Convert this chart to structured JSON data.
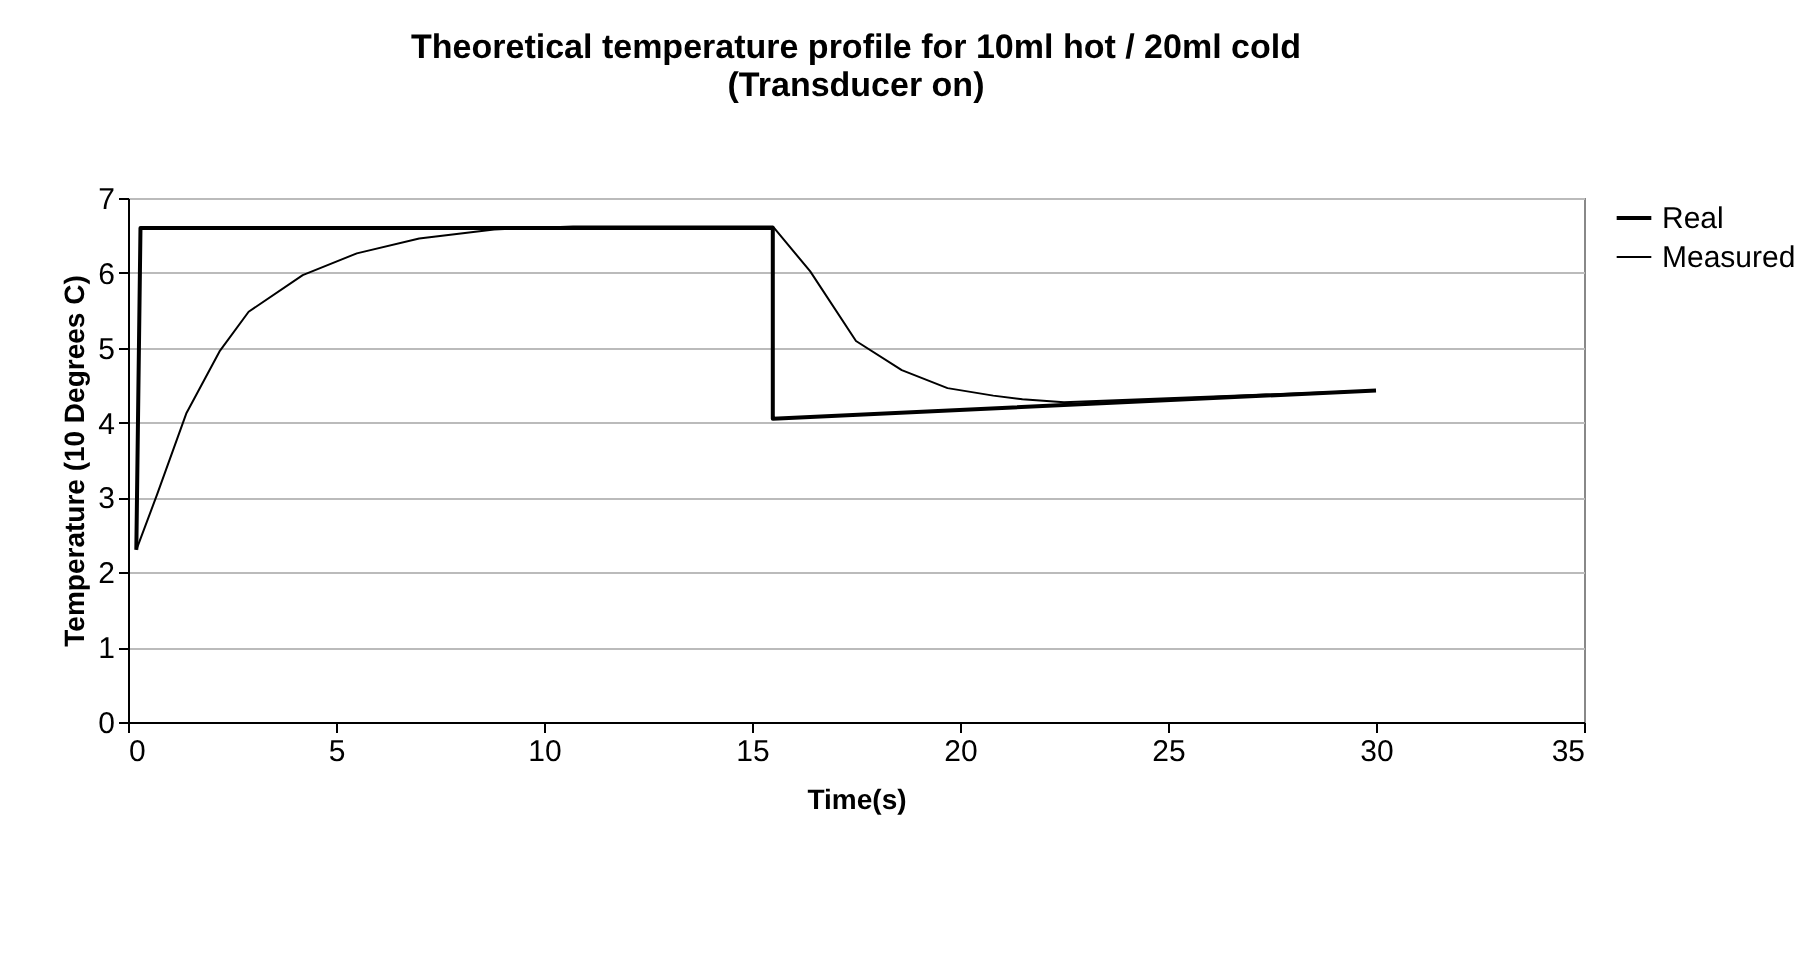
{
  "chart_data": {
    "type": "line",
    "title": "Theoretical temperature profile for 10ml hot / 20ml cold\n(Transducer on)",
    "xlabel": "Time(s)",
    "ylabel": "Temperature (10 Degrees C)",
    "xlim": [
      0,
      35
    ],
    "xticks": [
      0,
      5,
      10,
      15,
      20,
      25,
      30,
      35
    ],
    "ylim": [
      0,
      7
    ],
    "yticks": [
      0,
      1,
      2,
      3,
      4,
      5,
      6,
      7
    ],
    "grid": "y",
    "legend": "right",
    "marker": "none",
    "line_style": "solid",
    "series": [
      {
        "name": "Real",
        "color": "#000000",
        "x": [
          0.2,
          0.3,
          15.5,
          15.5,
          30
        ],
        "values": [
          2.3,
          6.6,
          6.6,
          4.05,
          4.43
        ]
      },
      {
        "name": "Measured",
        "color": "#000000",
        "x": [
          0.2,
          0.7,
          1.4,
          2.2,
          2.9,
          4.2,
          5.5,
          7,
          8.8,
          10.7,
          15.5,
          16.4,
          17.5,
          18.6,
          19.7,
          20.8,
          21.5,
          22.5,
          30
        ],
        "values": [
          2.3,
          3.04,
          4.12,
          4.95,
          5.48,
          5.97,
          6.26,
          6.46,
          6.58,
          6.62,
          6.62,
          6.02,
          5.09,
          4.7,
          4.46,
          4.36,
          4.31,
          4.27,
          4.43
        ]
      }
    ]
  }
}
